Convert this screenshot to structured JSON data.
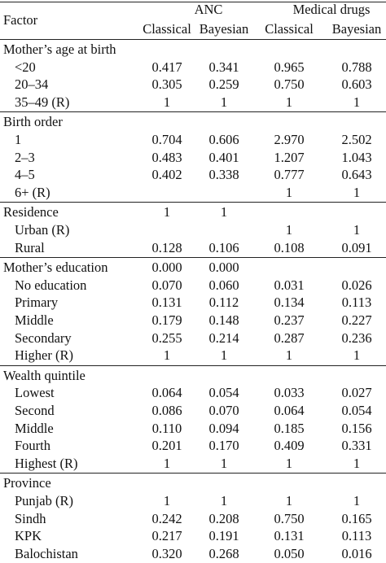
{
  "header": {
    "factor_label": "Factor",
    "groups": [
      "ANC",
      "Medical drugs"
    ],
    "subcols": [
      "Classical",
      "Bayesian",
      "Classical",
      "Bayesian"
    ]
  },
  "sections": [
    {
      "title": "Mother’s age at birth",
      "title_values": [
        "",
        "",
        "",
        ""
      ],
      "rows": [
        {
          "label": "<20",
          "values": [
            "0.417",
            "0.341",
            "0.965",
            "0.788"
          ]
        },
        {
          "label": "20–34",
          "values": [
            "0.305",
            "0.259",
            "0.750",
            "0.603"
          ]
        },
        {
          "label": "35–49 (R)",
          "values": [
            "1",
            "1",
            "1",
            "1"
          ]
        }
      ]
    },
    {
      "title": "Birth order",
      "title_values": [
        "",
        "",
        "",
        ""
      ],
      "rows": [
        {
          "label": "1",
          "values": [
            "0.704",
            "0.606",
            "2.970",
            "2.502"
          ]
        },
        {
          "label": "2–3",
          "values": [
            "0.483",
            "0.401",
            "1.207",
            "1.043"
          ]
        },
        {
          "label": "4–5",
          "values": [
            "0.402",
            "0.338",
            "0.777",
            "0.643"
          ]
        },
        {
          "label": "6+ (R)",
          "values": [
            "",
            "",
            "1",
            "1"
          ]
        }
      ]
    },
    {
      "title": "Residence",
      "title_values": [
        "1",
        "1",
        "",
        ""
      ],
      "rows": [
        {
          "label": "Urban (R)",
          "values": [
            "",
            "",
            "1",
            "1"
          ]
        },
        {
          "label": "Rural",
          "values": [
            "0.128",
            "0.106",
            "0.108",
            "0.091"
          ]
        }
      ]
    },
    {
      "title": "Mother’s education",
      "title_values": [
        "0.000",
        "0.000",
        "",
        ""
      ],
      "rows": [
        {
          "label": "No education",
          "values": [
            "0.070",
            "0.060",
            "0.031",
            "0.026"
          ]
        },
        {
          "label": "Primary",
          "values": [
            "0.131",
            "0.112",
            "0.134",
            "0.113"
          ]
        },
        {
          "label": "Middle",
          "values": [
            "0.179",
            "0.148",
            "0.237",
            "0.227"
          ]
        },
        {
          "label": "Secondary",
          "values": [
            "0.255",
            "0.214",
            "0.287",
            "0.236"
          ]
        },
        {
          "label": "Higher (R)",
          "values": [
            "1",
            "1",
            "1",
            "1"
          ]
        }
      ]
    },
    {
      "title": "Wealth quintile",
      "title_values": [
        "",
        "",
        "",
        ""
      ],
      "rows": [
        {
          "label": "Lowest",
          "values": [
            "0.064",
            "0.054",
            "0.033",
            "0.027"
          ]
        },
        {
          "label": "Second",
          "values": [
            "0.086",
            "0.070",
            "0.064",
            "0.054"
          ]
        },
        {
          "label": "Middle",
          "values": [
            "0.110",
            "0.094",
            "0.185",
            "0.156"
          ]
        },
        {
          "label": "Fourth",
          "values": [
            "0.201",
            "0.170",
            "0.409",
            "0.331"
          ]
        },
        {
          "label": "Highest (R)",
          "values": [
            "1",
            "1",
            "1",
            "1"
          ]
        }
      ]
    },
    {
      "title": "Province",
      "title_values": [
        "",
        "",
        "",
        ""
      ],
      "rows": [
        {
          "label": "Punjab (R)",
          "values": [
            "1",
            "1",
            "1",
            "1"
          ]
        },
        {
          "label": "Sindh",
          "values": [
            "0.242",
            "0.208",
            "0.750",
            "0.165"
          ]
        },
        {
          "label": "KPK",
          "values": [
            "0.217",
            "0.191",
            "0.131",
            "0.113"
          ]
        },
        {
          "label": "Balochistan",
          "values": [
            "0.320",
            "0.268",
            "0.050",
            "0.016"
          ]
        }
      ]
    }
  ]
}
